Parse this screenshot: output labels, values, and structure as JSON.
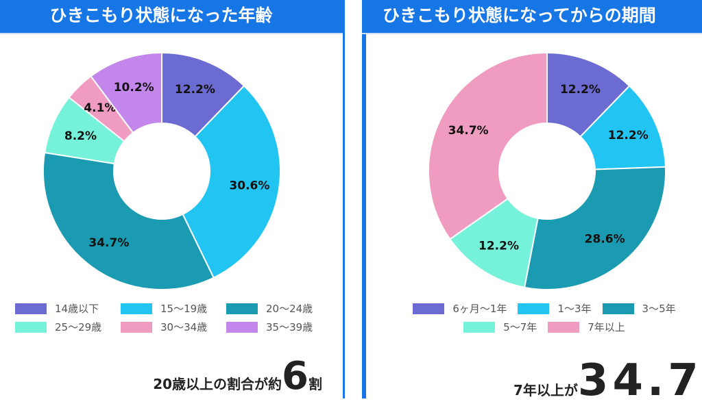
{
  "chart_data": [
    {
      "type": "pie",
      "title": "ひきこもり状態になった年齢",
      "categories": [
        "14歳以下",
        "15〜19歳",
        "20〜24歳",
        "25〜29歳",
        "30〜34歳",
        "35〜39歳"
      ],
      "values": [
        12.2,
        30.6,
        34.7,
        8.2,
        4.1,
        10.2
      ],
      "labels": [
        "12.2%",
        "30.6%",
        "34.7%",
        "8.2%",
        "4.1%",
        "10.2%"
      ],
      "colors": [
        "#6C6BD1",
        "#22C4F2",
        "#1A9BB1",
        "#76F2DA",
        "#EF9CC0",
        "#C387EC"
      ],
      "legend": "bottom",
      "donut": true,
      "summary": {
        "prefix": "20歳以上の割合が約",
        "value": "6",
        "suffix": "割"
      }
    },
    {
      "type": "pie",
      "title": "ひきこもり状態になってからの期間",
      "categories": [
        "6ヶ月〜1年",
        "1〜3年",
        "3〜5年",
        "5〜7年",
        "7年以上"
      ],
      "values": [
        12.2,
        12.2,
        28.6,
        12.2,
        34.7
      ],
      "labels": [
        "12.2%",
        "12.2%",
        "28.6%",
        "12.2%",
        "34.7%"
      ],
      "colors": [
        "#6C6BD1",
        "#22C4F2",
        "#1A9BB1",
        "#76F2DA",
        "#EF9CC0"
      ],
      "legend": "bottom",
      "donut": true,
      "summary": {
        "prefix": "7年以上が",
        "value": "34.7",
        "suffix": "%"
      }
    }
  ]
}
